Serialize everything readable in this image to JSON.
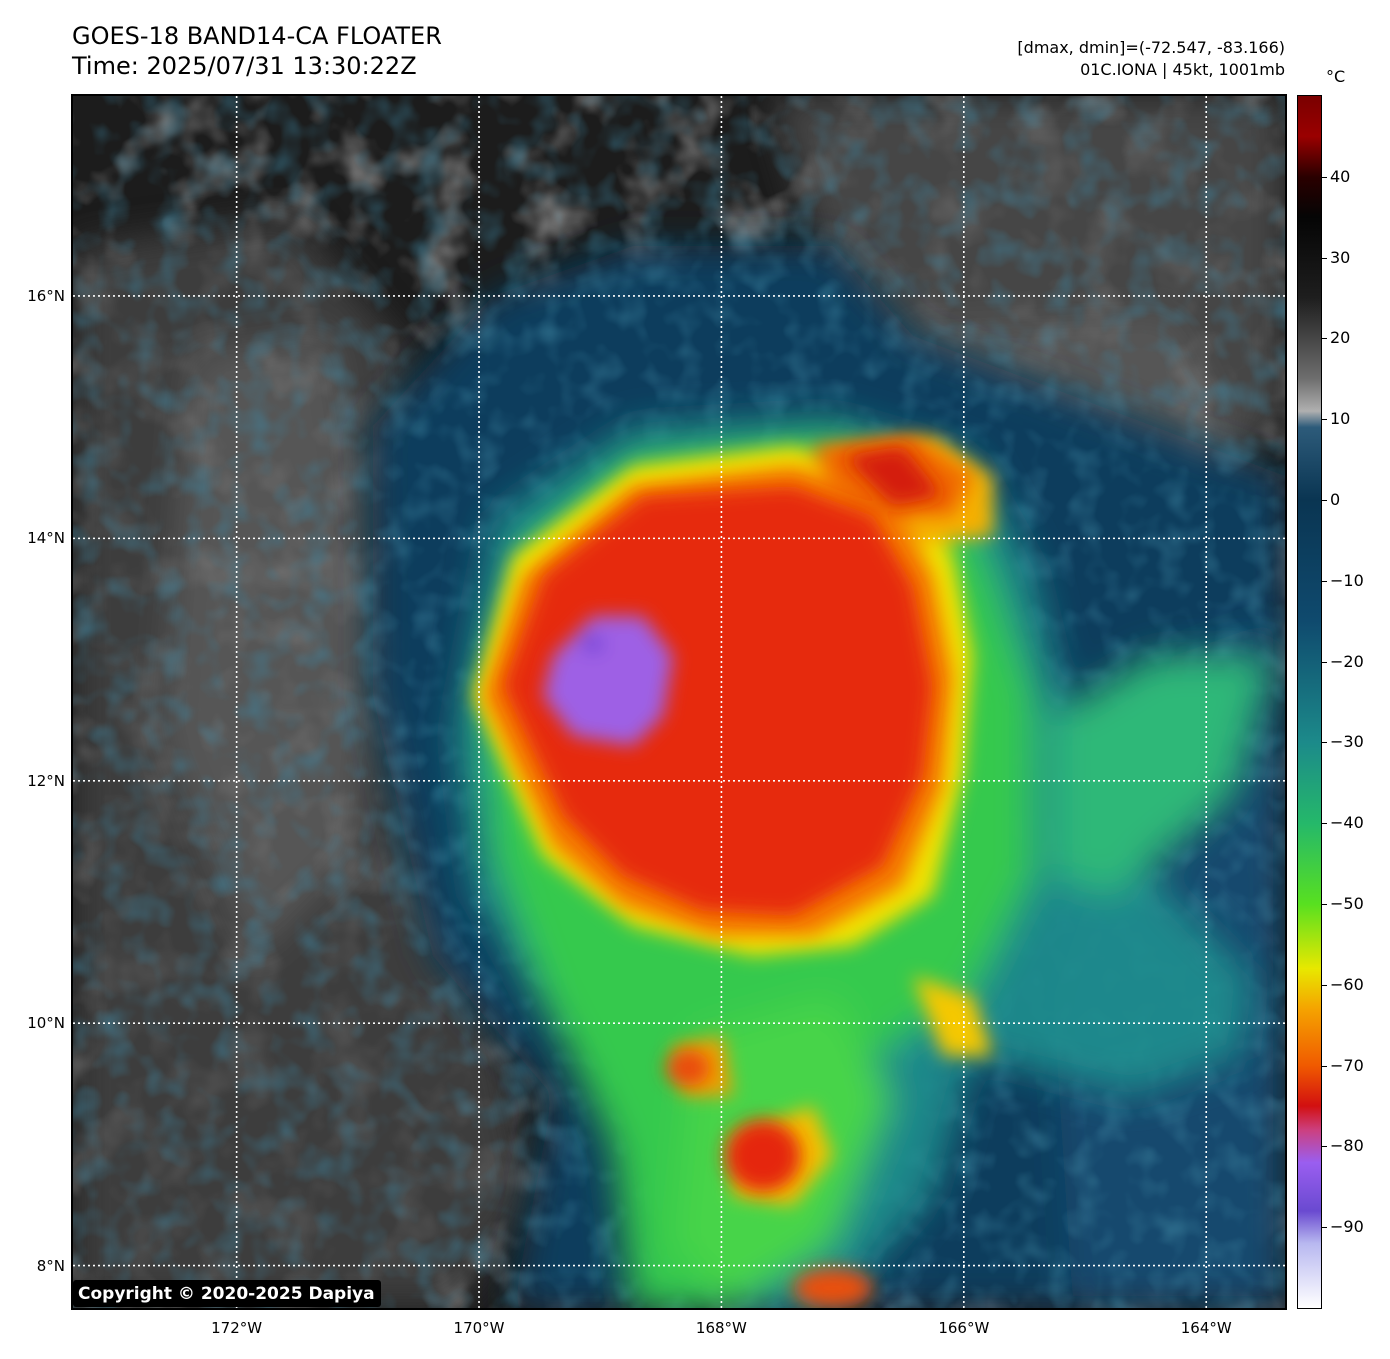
{
  "header": {
    "title_line1": "GOES-18 BAND14-CA FLOATER",
    "title_line2": "Time: 2025/07/31 13:30:22Z",
    "info_line1": "[dmax, dmin]=(-72.547, -83.166)",
    "info_line2": "01C.IONA | 45kt, 1001mb"
  },
  "map": {
    "lon_range": [
      -173.35,
      -163.35
    ],
    "lat_range": [
      7.65,
      17.65
    ],
    "lat_labels": [
      "16°N",
      "14°N",
      "12°N",
      "10°N",
      "8°N"
    ],
    "lat_values": [
      16,
      14,
      12,
      10,
      8
    ],
    "lon_labels": [
      "172°W",
      "170°W",
      "168°W",
      "166°W",
      "164°W"
    ],
    "lon_values": [
      -172,
      -170,
      -168,
      -166,
      -164
    ],
    "gridlines": "dotted white",
    "storm": "01C.IONA",
    "copyright": "Copyright © 2020-2025 Dapiya"
  },
  "colorbar": {
    "unit": "°C",
    "range": [
      -100,
      50
    ],
    "labels": [
      "40",
      "30",
      "20",
      "10",
      "0",
      "−10",
      "−20",
      "−30",
      "−40",
      "−50",
      "−60",
      "−70",
      "−80",
      "−90"
    ],
    "values": [
      40,
      30,
      20,
      10,
      0,
      -10,
      -20,
      -30,
      -40,
      -50,
      -60,
      -70,
      -80,
      -90
    ]
  },
  "colors": {
    "cold_top_red": "#e52a0a",
    "coldest_purple": "#9a63f0",
    "mid_yellow": "#f3d000",
    "green": "#3fd24b",
    "ocean_blue": "#0c3c5c",
    "cloud_gray": "#5a5a5a",
    "warm_black": "#1e1e1e"
  }
}
